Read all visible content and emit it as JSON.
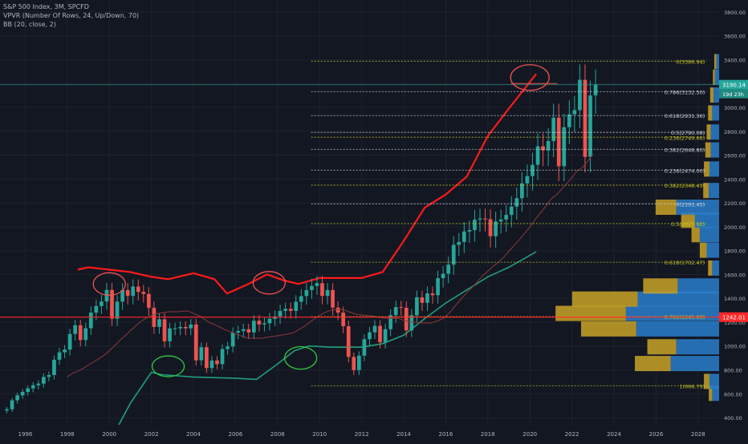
{
  "legend": {
    "symbol": "S&P 500 Index, 3M, SPCFD",
    "vpvr": "VPVR (Number Of Rows, 24, Up/Down, 70)",
    "bb": "BB (20, close, 2)"
  },
  "colors": {
    "background": "#131722",
    "grid": "#1e222d",
    "up": "#26a69a",
    "down": "#ef5350",
    "bb_upper": "#ff1a1a",
    "bb_lower": "#1f9f7a",
    "bb_basis": "#8a3a3a",
    "vp_up": "#2a7ecb",
    "vp_down": "#c9a227",
    "fib": "#c8c820",
    "fib_white": "#d1d4dc",
    "support": "#ff2a2a",
    "price_label": "#26a69a"
  },
  "price_labels": {
    "current": "3190.14",
    "countdown": "19d 23h",
    "support": "1242.01"
  },
  "chart_data": {
    "type": "candlestick",
    "title": "S&P 500 Index, 3M, SPCFD",
    "ylim": [
      340,
      3900
    ],
    "xlim": [
      1994.8,
      2029.0
    ],
    "y_ticks": [
      "400.00",
      "600.00",
      "800.00",
      "1000.00",
      "1200.00",
      "1400.00",
      "1600.00",
      "1800.00",
      "2000.00",
      "2200.00",
      "2400.00",
      "2600.00",
      "2800.00",
      "3000.00",
      "3200.00",
      "3400.00",
      "3600.00",
      "3800.00"
    ],
    "x_ticks": [
      "1996",
      "1998",
      "2000",
      "2002",
      "2004",
      "2006",
      "2008",
      "2010",
      "2012",
      "2014",
      "2016",
      "2018",
      "2020",
      "2022",
      "2024",
      "2026",
      "2028"
    ],
    "candles_close": [
      470,
      545,
      587,
      615,
      645,
      671,
      685,
      741,
      757,
      885,
      947,
      970,
      1101,
      1174,
      1050,
      1149,
      1280,
      1335,
      1373,
      1470,
      1229,
      1372,
      1469,
      1420,
      1498,
      1454,
      1436,
      1320,
      1160,
      1224,
      1040,
      1148,
      1148,
      1160,
      1148,
      1180,
      880,
      990,
      815,
      879,
      848,
      975,
      996,
      1112,
      1126,
      1141,
      1114,
      1212,
      1181,
      1191,
      1228,
      1248,
      1294,
      1312,
      1294,
      1371,
      1418,
      1469,
      1503,
      1527,
      1420,
      1469,
      1322,
      1280,
      1166,
      909,
      798,
      919,
      1057,
      1115,
      1169,
      1031,
      1141,
      1258,
      1326,
      1321,
      1131,
      1258,
      1408,
      1362,
      1441,
      1426,
      1569,
      1606,
      1682,
      1848,
      1872,
      1960,
      1972,
      2059,
      2068,
      2063,
      1920,
      2044,
      2060,
      2099,
      2168,
      2239,
      2363,
      2424,
      2519,
      2674,
      2640,
      2718,
      2914,
      2507,
      2834,
      2942,
      2977,
      3231,
      2585,
      3100,
      3190
    ],
    "bb_upper_samples": [
      [
        1998.5,
        1640
      ],
      [
        1999.0,
        1660
      ],
      [
        2000.0,
        1640
      ],
      [
        2001.0,
        1620
      ],
      [
        2002.0,
        1580
      ],
      [
        2002.8,
        1560
      ],
      [
        2004.0,
        1610
      ],
      [
        2005.0,
        1560
      ],
      [
        2005.6,
        1440
      ],
      [
        2006.5,
        1510
      ],
      [
        2007.5,
        1600
      ],
      [
        2008.3,
        1550
      ],
      [
        2009.0,
        1520
      ],
      [
        2010.0,
        1570
      ],
      [
        2011.0,
        1570
      ],
      [
        2012.0,
        1570
      ],
      [
        2013.0,
        1620
      ],
      [
        2014.0,
        1880
      ],
      [
        2015.0,
        2160
      ],
      [
        2016.0,
        2270
      ],
      [
        2017.0,
        2420
      ],
      [
        2018.0,
        2760
      ],
      [
        2019.0,
        2990
      ],
      [
        2020.3,
        3280
      ]
    ],
    "bb_lower_samples": [
      [
        2000.0,
        190
      ],
      [
        2001.0,
        520
      ],
      [
        2002.0,
        780
      ],
      [
        2002.5,
        760
      ],
      [
        2004.0,
        740
      ],
      [
        2006.0,
        730
      ],
      [
        2007.0,
        720
      ],
      [
        2008.0,
        850
      ],
      [
        2008.8,
        960
      ],
      [
        2009.5,
        1000
      ],
      [
        2010.5,
        990
      ],
      [
        2012.0,
        990
      ],
      [
        2013.0,
        1020
      ],
      [
        2014.0,
        1090
      ],
      [
        2015.0,
        1230
      ],
      [
        2016.0,
        1360
      ],
      [
        2017.0,
        1470
      ],
      [
        2018.0,
        1580
      ],
      [
        2019.0,
        1660
      ],
      [
        2019.8,
        1740
      ],
      [
        2020.3,
        1790
      ]
    ],
    "fib_levels": [
      {
        "label": "0(3386.94)",
        "value": 3386.94,
        "color": "fib"
      },
      {
        "label": "0.786(3132.50)",
        "value": 3132.5,
        "color": "fib_white"
      },
      {
        "label": "0.618(2931.36)",
        "value": 2931.36,
        "color": "fib_white"
      },
      {
        "label": "0.5(2790.08)",
        "value": 2790.08,
        "color": "fib_white"
      },
      {
        "label": "0.236(2749.66)",
        "value": 2749.66,
        "color": "fib"
      },
      {
        "label": "0.382(2648.80)",
        "value": 2648.8,
        "color": "fib_white"
      },
      {
        "label": "0.236(2474.00)",
        "value": 2474.0,
        "color": "fib_white"
      },
      {
        "label": "0.382(2348.43)",
        "value": 2348.43,
        "color": "fib"
      },
      {
        "label": "0(2191.45)",
        "value": 2191.45,
        "color": "fib_white"
      },
      {
        "label": "0.5(2025.92)",
        "value": 2025.92,
        "color": "fib"
      },
      {
        "label": "0.618(1702.47)",
        "value": 1702.47,
        "color": "fib"
      },
      {
        "label": "0.786(1245.89)",
        "value": 1245.89,
        "color": "fib"
      },
      {
        "label": "1(666.79)",
        "value": 666.79,
        "color": "fib"
      }
    ],
    "volume_profile": [
      {
        "price": 600,
        "up": 10,
        "down": 5
      },
      {
        "price": 700,
        "up": 14,
        "down": 8
      },
      {
        "price": 850,
        "up": 70,
        "down": 52
      },
      {
        "price": 990,
        "up": 62,
        "down": 42
      },
      {
        "price": 1140,
        "up": 120,
        "down": 80
      },
      {
        "price": 1270,
        "up": 135,
        "down": 102
      },
      {
        "price": 1390,
        "up": 118,
        "down": 95
      },
      {
        "price": 1500,
        "up": 60,
        "down": 50
      },
      {
        "price": 1650,
        "up": 10,
        "down": 6
      },
      {
        "price": 1800,
        "up": 18,
        "down": 10
      },
      {
        "price": 1930,
        "up": 28,
        "down": 12
      },
      {
        "price": 2050,
        "up": 35,
        "down": 20
      },
      {
        "price": 2160,
        "up": 62,
        "down": 30
      },
      {
        "price": 2300,
        "up": 15,
        "down": 8
      },
      {
        "price": 2480,
        "up": 14,
        "down": 8
      },
      {
        "price": 2640,
        "up": 12,
        "down": 8
      },
      {
        "price": 2790,
        "up": 12,
        "down": 6
      },
      {
        "price": 2950,
        "up": 10,
        "down": 6
      },
      {
        "price": 3100,
        "up": 8,
        "down": 5
      },
      {
        "price": 3250,
        "up": 6,
        "down": 3
      },
      {
        "price": 3380,
        "up": 4,
        "down": 3
      }
    ],
    "current_price": 3190.14,
    "support_line": 1242.01
  }
}
